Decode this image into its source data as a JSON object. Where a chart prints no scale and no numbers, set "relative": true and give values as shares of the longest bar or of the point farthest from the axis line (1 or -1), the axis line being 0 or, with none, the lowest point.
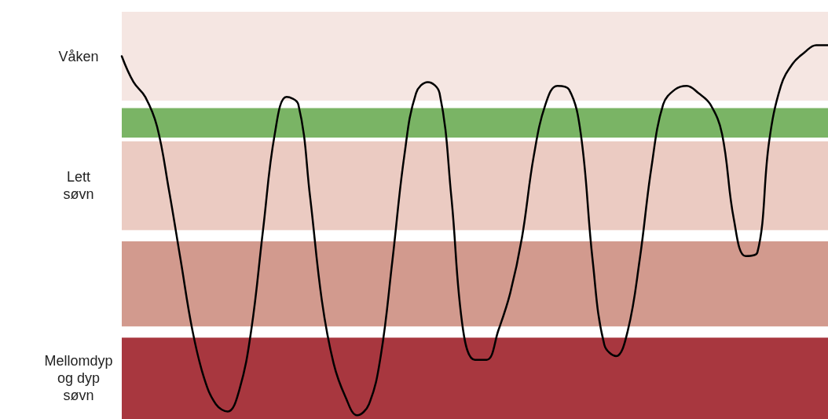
{
  "chart_data": {
    "type": "line",
    "relative": true,
    "line_style": "solid",
    "categories": [
      null,
      null,
      null,
      null,
      null,
      null,
      null,
      null,
      null,
      null,
      null,
      null,
      null,
      null,
      null,
      null,
      null,
      null,
      null,
      null,
      null,
      null,
      null,
      null,
      null,
      null,
      null,
      null,
      null,
      null,
      null,
      null,
      null,
      null,
      null,
      null,
      null,
      null,
      null,
      null,
      null,
      null,
      null,
      null,
      null,
      null,
      null,
      null,
      null,
      null,
      null,
      null,
      null,
      null,
      null,
      null,
      null,
      null,
      null,
      null,
      null
    ],
    "series": [
      {
        "color": "#000000",
        "values": [
          0.97,
          0.9,
          0.86,
          0.78,
          0.61,
          0.42,
          0.23,
          0.1,
          0.03,
          0.01,
          0.07,
          0.23,
          0.5,
          0.76,
          0.86,
          0.84,
          0.59,
          0.31,
          0.14,
          0.05,
          0.0,
          0.03,
          0.16,
          0.42,
          0.7,
          0.87,
          0.9,
          0.87,
          0.59,
          0.23,
          0.15,
          0.15,
          0.23,
          0.33,
          0.48,
          0.7,
          0.84,
          0.89,
          0.88,
          0.76,
          0.42,
          0.19,
          0.16,
          0.23,
          0.42,
          0.67,
          0.84,
          0.88,
          0.89,
          0.87,
          0.84,
          0.76,
          0.53,
          0.43,
          0.44,
          0.74,
          0.89,
          0.95,
          0.98,
          1.0,
          1.0
        ]
      }
    ],
    "bands": [
      {
        "axis": "y",
        "from": 0.85,
        "to": 1.09,
        "label": "Våken",
        "color": "#f5e6e2"
      },
      {
        "axis": "y",
        "from": 0.75,
        "to": 0.83,
        "label": null,
        "color": "#7ab465"
      },
      {
        "axis": "y",
        "from": 0.5,
        "to": 0.74,
        "label": "Lett søvn",
        "color": "#ebcbc2"
      },
      {
        "axis": "y",
        "from": 0.24,
        "to": 0.47,
        "label": null,
        "color": "#d29a8e"
      },
      {
        "axis": "y",
        "from": -0.01,
        "to": 0.21,
        "label": "Mellomdyp og dyp søvn",
        "color": "#a8373f"
      }
    ]
  }
}
